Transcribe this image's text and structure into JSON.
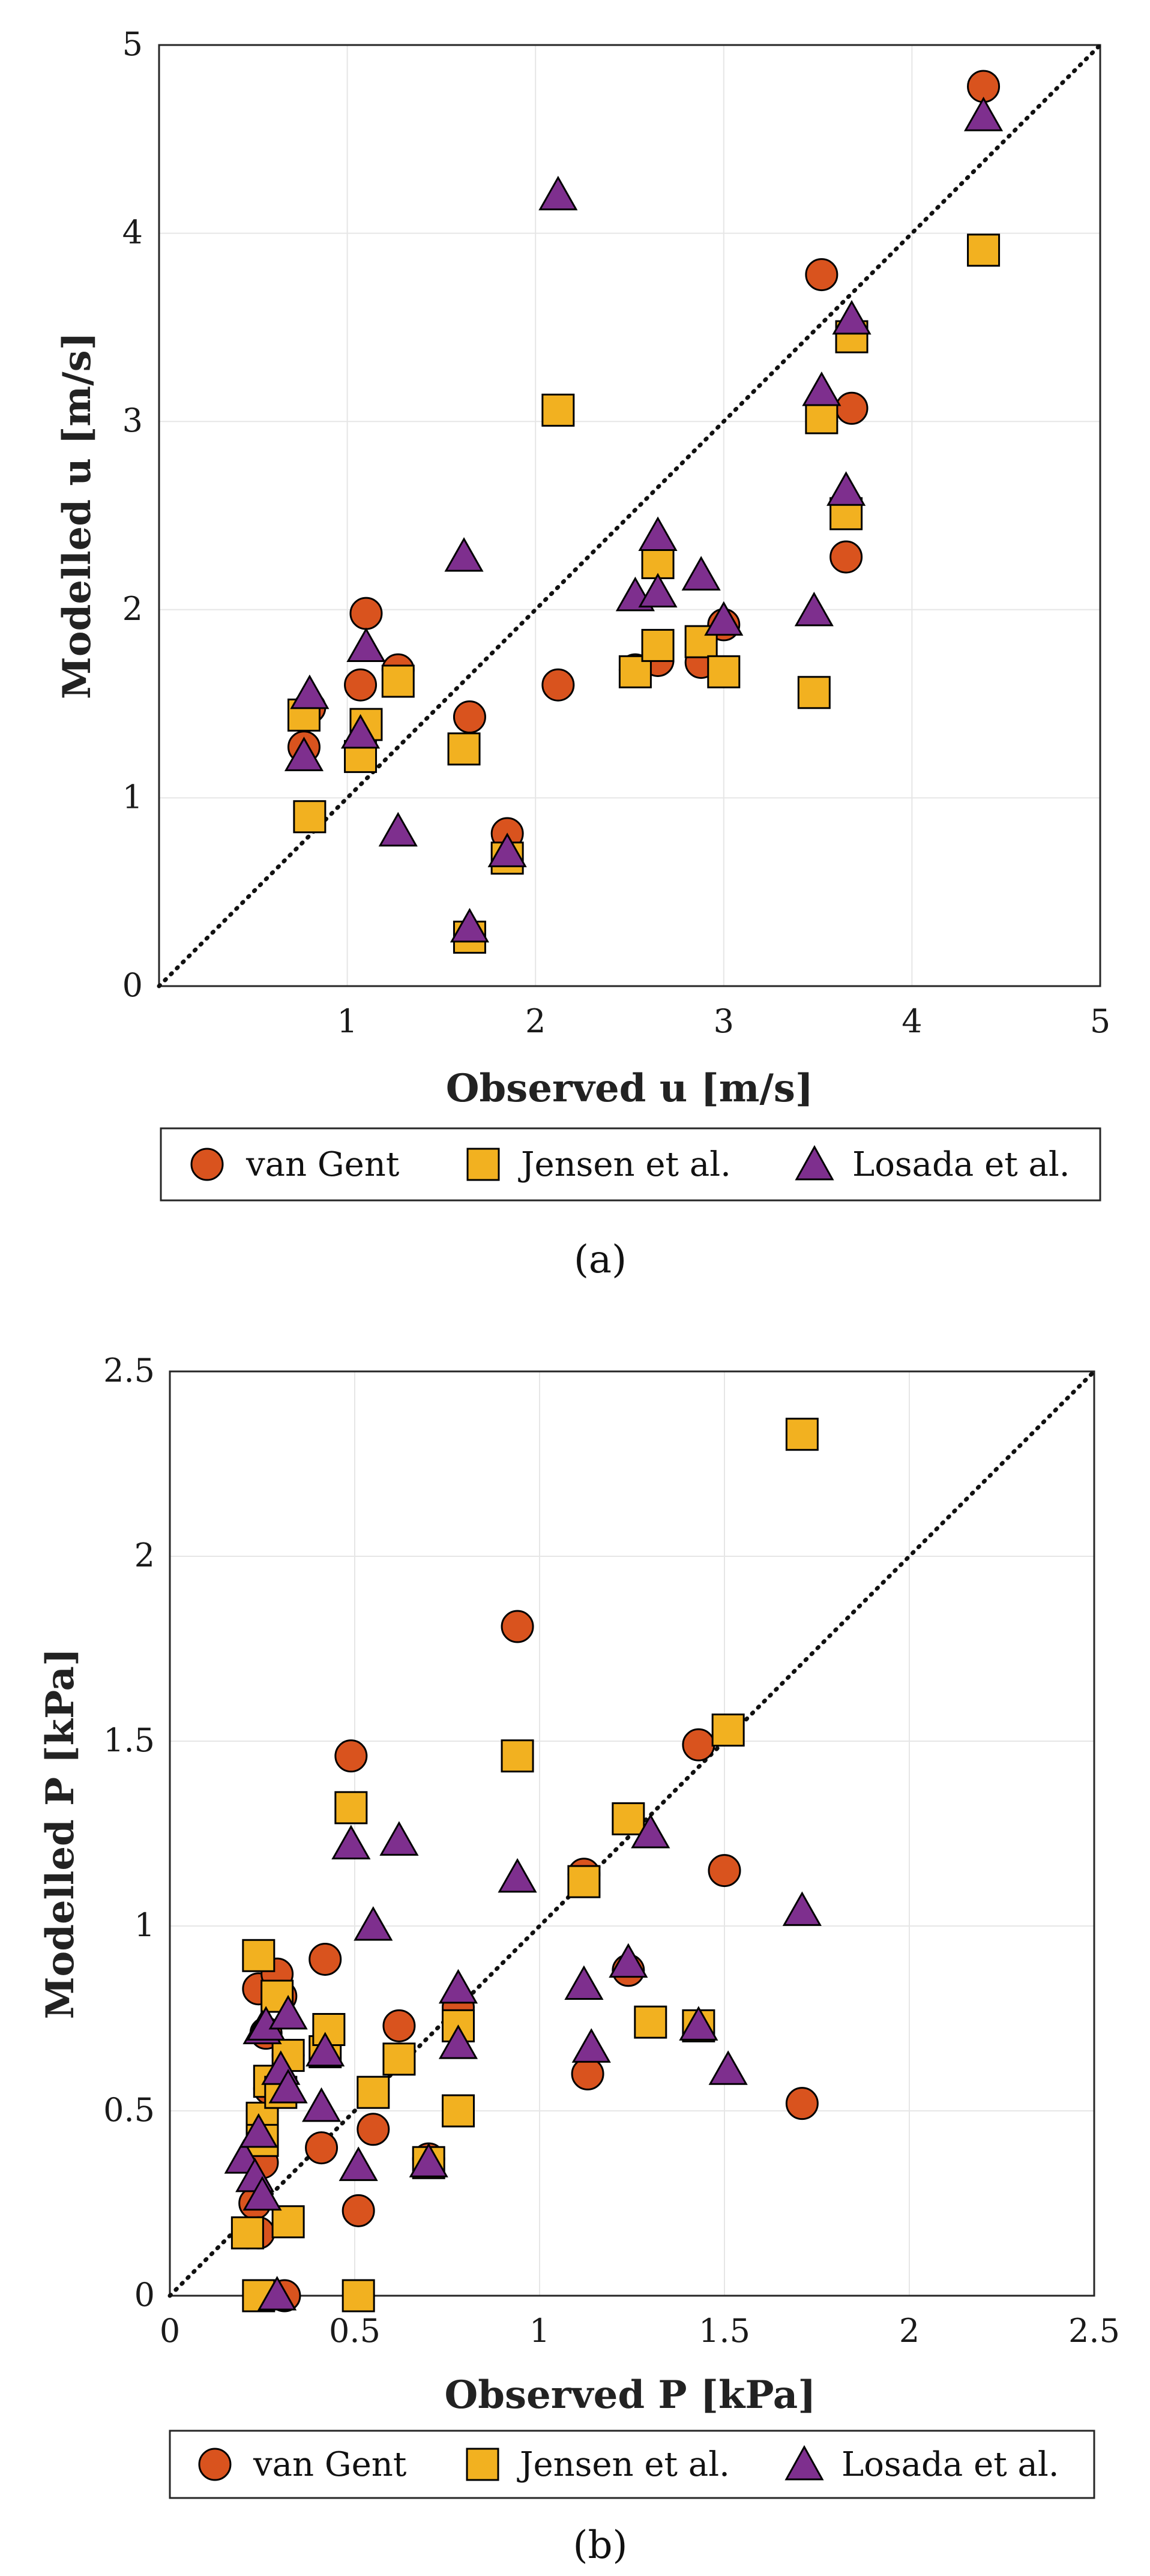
{
  "chart_data": [
    {
      "id": "a",
      "type": "scatter",
      "caption": "(a)",
      "xlabel": "Observed u [m/s]",
      "ylabel": "Modelled u [m/s]",
      "xlim": [
        0,
        5
      ],
      "ylim": [
        0,
        5
      ],
      "xticks": [
        "1",
        "2",
        "3",
        "4",
        "5"
      ],
      "yticks": [
        "0",
        "1",
        "2",
        "3",
        "4",
        "5"
      ],
      "grid": true,
      "reference_line": "1:1 dotted",
      "legend_position": "below",
      "series": [
        {
          "name": "van Gent",
          "marker": "circle",
          "color": "#d9531e",
          "x": [
            0.77,
            0.8,
            1.07,
            1.1,
            1.27,
            1.65,
            1.85,
            2.12,
            2.53,
            2.65,
            2.88,
            3.0,
            3.52,
            3.65,
            3.68,
            4.38
          ],
          "y": [
            1.27,
            1.48,
            1.6,
            1.98,
            1.68,
            1.43,
            0.81,
            1.6,
            1.68,
            1.73,
            1.72,
            1.92,
            3.78,
            2.28,
            3.07,
            4.78
          ]
        },
        {
          "name": "Jensen et al.",
          "marker": "square",
          "color": "#f2b120",
          "x": [
            0.77,
            0.8,
            1.07,
            1.1,
            1.27,
            1.62,
            1.65,
            1.85,
            2.12,
            2.53,
            2.65,
            2.65,
            2.88,
            3.0,
            3.48,
            3.52,
            3.65,
            3.68,
            4.38
          ],
          "y": [
            1.44,
            0.9,
            1.22,
            1.39,
            1.62,
            1.26,
            0.26,
            0.68,
            3.06,
            1.67,
            1.81,
            2.25,
            1.83,
            1.67,
            1.56,
            3.02,
            2.51,
            3.45,
            3.91
          ]
        },
        {
          "name": "Losada et al.",
          "marker": "triangle",
          "color": "#7e2f8e",
          "x": [
            0.77,
            0.8,
            1.07,
            1.1,
            1.27,
            1.62,
            1.65,
            1.85,
            2.12,
            2.53,
            2.65,
            2.65,
            2.88,
            3.0,
            3.48,
            3.52,
            3.65,
            3.68,
            4.38
          ],
          "y": [
            1.22,
            1.55,
            1.34,
            1.8,
            0.82,
            2.28,
            0.31,
            0.71,
            4.2,
            2.07,
            2.39,
            2.09,
            2.18,
            1.94,
            1.99,
            3.16,
            2.63,
            3.54,
            4.62
          ]
        }
      ]
    },
    {
      "id": "b",
      "type": "scatter",
      "caption": "(b)",
      "xlabel": "Observed P [kPa]",
      "ylabel": "Modelled P [kPa]",
      "xlim": [
        0,
        2.5
      ],
      "ylim": [
        0,
        2.5
      ],
      "xticks": [
        "0",
        "0.5",
        "1",
        "1.5",
        "2",
        "2.5"
      ],
      "yticks": [
        "0",
        "0.5",
        "1",
        "1.5",
        "2",
        "2.5"
      ],
      "grid": true,
      "reference_line": "1:1 dotted",
      "legend_position": "below",
      "series": [
        {
          "name": "van Gent",
          "marker": "circle",
          "color": "#d9531e",
          "x": [
            0.21,
            0.23,
            0.24,
            0.24,
            0.25,
            0.26,
            0.27,
            0.29,
            0.3,
            0.31,
            0.32,
            0.41,
            0.42,
            0.49,
            0.51,
            0.55,
            0.62,
            0.7,
            0.78,
            0.94,
            1.12,
            1.13,
            1.24,
            1.43,
            1.5,
            1.71
          ],
          "y": [
            0.17,
            0.25,
            0.83,
            0.17,
            0.36,
            0.71,
            0.56,
            0.87,
            0.81,
            0.0,
            0.65,
            0.4,
            0.91,
            1.46,
            0.23,
            0.45,
            0.73,
            0.37,
            0.78,
            1.81,
            1.14,
            0.6,
            0.88,
            1.49,
            1.15,
            0.52
          ]
        },
        {
          "name": "Jensen et al.",
          "marker": "square",
          "color": "#f2b120",
          "x": [
            0.21,
            0.24,
            0.24,
            0.25,
            0.25,
            0.27,
            0.29,
            0.3,
            0.32,
            0.32,
            0.42,
            0.43,
            0.49,
            0.51,
            0.55,
            0.62,
            0.7,
            0.78,
            0.78,
            0.94,
            1.12,
            1.24,
            1.3,
            1.43,
            1.51,
            1.71
          ],
          "y": [
            0.17,
            0.0,
            0.92,
            0.48,
            0.42,
            0.58,
            0.81,
            0.55,
            0.2,
            0.65,
            0.66,
            0.72,
            1.32,
            0.0,
            0.55,
            0.64,
            0.36,
            0.73,
            0.5,
            1.46,
            1.12,
            1.29,
            0.74,
            0.73,
            1.53,
            2.33
          ]
        },
        {
          "name": "Losada et al.",
          "marker": "triangle",
          "color": "#7e2f8e",
          "x": [
            0.2,
            0.23,
            0.24,
            0.25,
            0.25,
            0.26,
            0.29,
            0.3,
            0.32,
            0.32,
            0.41,
            0.42,
            0.49,
            0.51,
            0.55,
            0.62,
            0.7,
            0.78,
            0.78,
            0.94,
            1.12,
            1.14,
            1.24,
            1.3,
            1.43,
            1.51,
            1.71
          ],
          "y": [
            0.37,
            0.32,
            0.44,
            0.72,
            0.27,
            0.73,
            0.0,
            0.61,
            0.76,
            0.56,
            0.51,
            0.66,
            1.22,
            0.35,
            1.0,
            1.23,
            0.36,
            0.83,
            0.68,
            1.13,
            0.84,
            0.67,
            0.9,
            1.25,
            0.73,
            0.61,
            1.04
          ]
        }
      ]
    }
  ]
}
